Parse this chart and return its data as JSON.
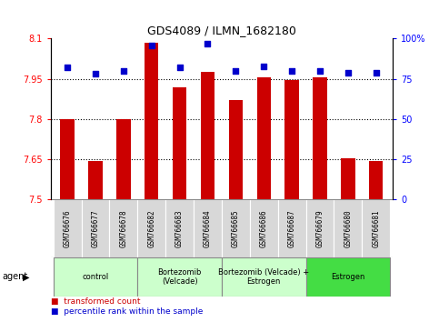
{
  "title": "GDS4089 / ILMN_1682180",
  "samples": [
    "GSM766676",
    "GSM766677",
    "GSM766678",
    "GSM766682",
    "GSM766683",
    "GSM766684",
    "GSM766685",
    "GSM766686",
    "GSM766687",
    "GSM766679",
    "GSM766680",
    "GSM766681"
  ],
  "transformed_count": [
    7.8,
    7.645,
    7.8,
    8.085,
    7.92,
    7.975,
    7.87,
    7.955,
    7.945,
    7.955,
    7.655,
    7.645
  ],
  "percentile_rank": [
    82,
    78,
    80,
    96,
    82,
    97,
    80,
    83,
    80,
    80,
    79,
    79
  ],
  "ylim_left": [
    7.5,
    8.1
  ],
  "ylim_right": [
    0,
    100
  ],
  "yticks_left": [
    7.5,
    7.65,
    7.8,
    7.95,
    8.1
  ],
  "yticks_left_labels": [
    "7.5",
    "7.65",
    "7.8",
    "7.95",
    "8.1"
  ],
  "yticks_right": [
    0,
    25,
    50,
    75,
    100
  ],
  "yticks_right_labels": [
    "0",
    "25",
    "50",
    "75",
    "100%"
  ],
  "hlines": [
    7.65,
    7.8,
    7.95
  ],
  "bar_color": "#cc0000",
  "dot_color": "#0000cc",
  "bar_width": 0.5,
  "groups": [
    {
      "label": "control",
      "indices": [
        0,
        1,
        2
      ],
      "color": "#ccffcc"
    },
    {
      "label": "Bortezomib\n(Velcade)",
      "indices": [
        3,
        4,
        5
      ],
      "color": "#ccffcc"
    },
    {
      "label": "Bortezomib (Velcade) +\nEstrogen",
      "indices": [
        6,
        7,
        8
      ],
      "color": "#ccffcc"
    },
    {
      "label": "Estrogen",
      "indices": [
        9,
        10,
        11
      ],
      "color": "#44dd44"
    }
  ],
  "agent_label": "agent",
  "legend_bar_label": "transformed count",
  "legend_dot_label": "percentile rank within the sample",
  "bar_bottom": 7.5
}
